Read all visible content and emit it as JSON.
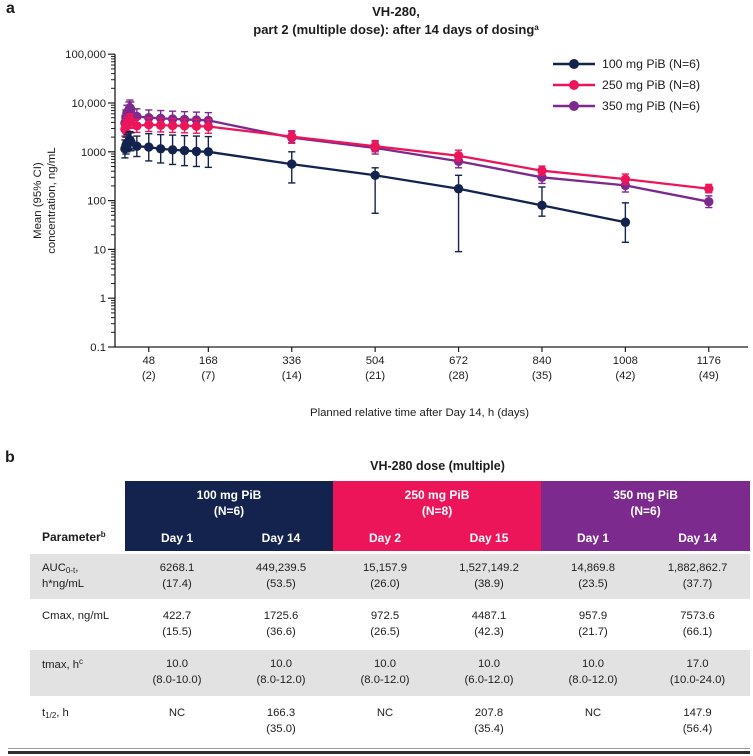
{
  "panel_labels": {
    "a": "a",
    "b": "b"
  },
  "chart_data": [
    {
      "type": "line",
      "panel": "a",
      "title_line1": "VH-280,",
      "title_line2_parts": [
        [
          "t",
          "part 2 (multiple dose): after 14 days of dosing"
        ],
        [
          "sup",
          "a"
        ]
      ],
      "ylabel_line1": "Mean (95% CI)",
      "ylabel_line2": "concentration, ng/mL",
      "xlabel": "Planned relative time after Day 14, h (days)",
      "yscale": "log",
      "ylim": [
        0.1,
        100000
      ],
      "ytick_labels": [
        "100,000",
        "10,000",
        "1000",
        "100",
        "10",
        "1",
        "0.1"
      ],
      "ytick_values": [
        100000,
        10000,
        1000,
        100,
        10,
        1,
        0.1
      ],
      "xlim": [
        -20,
        1255
      ],
      "xticks": [
        {
          "t": 48,
          "h": "48",
          "d": "(2)"
        },
        {
          "t": 168,
          "h": "168",
          "d": "(7)"
        },
        {
          "t": 336,
          "h": "336",
          "d": "(14)"
        },
        {
          "t": 504,
          "h": "504",
          "d": "(21)"
        },
        {
          "t": 672,
          "h": "672",
          "d": "(28)"
        },
        {
          "t": 840,
          "h": "840",
          "d": "(35)"
        },
        {
          "t": 1008,
          "h": "1008",
          "d": "(42)"
        },
        {
          "t": 1176,
          "h": "1176",
          "d": "(49)"
        }
      ],
      "legend_position": "top-right",
      "series": [
        {
          "name": "350 mg PiB (N=6)",
          "color": "#7C2A8D",
          "t": [
            0,
            2,
            4,
            8,
            10,
            12,
            24,
            48,
            72,
            96,
            120,
            144,
            168,
            336,
            504,
            672,
            840,
            1008,
            1176
          ],
          "v": [
            3900,
            5000,
            6200,
            7300,
            8000,
            7300,
            5300,
            5000,
            4850,
            4700,
            4600,
            4500,
            4400,
            1950,
            1200,
            640,
            300,
            205,
            95
          ],
          "lo": [
            2700,
            3500,
            4300,
            5100,
            5600,
            5100,
            3700,
            3450,
            3350,
            3250,
            3200,
            3100,
            3050,
            1500,
            900,
            470,
            225,
            150,
            72
          ],
          "hi": [
            5600,
            7200,
            9000,
            10500,
            11500,
            10500,
            7600,
            7200,
            7000,
            6800,
            6650,
            6500,
            6350,
            2550,
            1600,
            870,
            400,
            280,
            125
          ]
        },
        {
          "name": "250 mg PiB (N=8)",
          "color": "#EC155A",
          "t": [
            0,
            2,
            4,
            8,
            10,
            12,
            24,
            48,
            72,
            96,
            120,
            144,
            168,
            336,
            504,
            672,
            840,
            1008,
            1176
          ],
          "v": [
            2900,
            3300,
            3700,
            4100,
            4400,
            4200,
            3400,
            3600,
            3500,
            3450,
            3400,
            3350,
            3300,
            2050,
            1300,
            830,
            410,
            275,
            175
          ],
          "lo": [
            2100,
            2400,
            2700,
            3000,
            3200,
            3050,
            2500,
            2600,
            2550,
            2500,
            2450,
            2400,
            2400,
            1550,
            1000,
            640,
            330,
            215,
            145
          ],
          "hi": [
            4000,
            4550,
            5100,
            5600,
            6000,
            5800,
            4650,
            5000,
            4850,
            4750,
            4700,
            4650,
            4550,
            2700,
            1700,
            1080,
            510,
            350,
            215
          ]
        },
        {
          "name": "100 mg PiB (N=6)",
          "color": "#14234E",
          "t": [
            0,
            2,
            4,
            8,
            10,
            12,
            24,
            48,
            72,
            96,
            120,
            144,
            168,
            336,
            504,
            672,
            840,
            1008
          ],
          "v": [
            1150,
            1350,
            1500,
            1650,
            1750,
            1600,
            1300,
            1250,
            1150,
            1100,
            1060,
            1020,
            1000,
            560,
            330,
            175,
            80,
            36
          ],
          "lo": [
            750,
            900,
            1000,
            1100,
            1150,
            1050,
            800,
            650,
            590,
            550,
            520,
            500,
            480,
            230,
            55,
            9,
            48,
            14
          ],
          "hi": [
            1750,
            2000,
            2250,
            2450,
            2600,
            2450,
            2100,
            2350,
            2250,
            2200,
            2150,
            2100,
            2050,
            1000,
            470,
            330,
            190,
            90
          ]
        }
      ],
      "legend_order": [
        "100 mg PiB (N=6)",
        "250 mg PiB (N=8)",
        "350 mg PiB (N=6)"
      ],
      "legend_colors": [
        "#14234E",
        "#EC155A",
        "#7C2A8D"
      ]
    },
    {
      "type": "table",
      "panel": "b",
      "title": "VH-280 dose (multiple)",
      "param_header_parts": [
        [
          "t",
          "Parameter"
        ],
        [
          "sup",
          "b"
        ]
      ],
      "groups": [
        {
          "label": "100 mg PiB",
          "n": "(N=6)",
          "color": "#14234E",
          "days": [
            "Day 1",
            "Day 14"
          ]
        },
        {
          "label": "250 mg PiB",
          "n": "(N=8)",
          "color": "#EC155A",
          "days": [
            "Day 2",
            "Day 15"
          ]
        },
        {
          "label": "350 mg PiB",
          "n": "(N=6)",
          "color": "#7C2A8D",
          "days": [
            "Day 1",
            "Day 14"
          ]
        }
      ],
      "rows": [
        {
          "key": "auc",
          "shaded": true,
          "label_parts": [
            [
              "t",
              "AUC"
            ],
            [
              "sub",
              "0-t"
            ],
            [
              "t",
              ","
            ],
            [
              "br",
              ""
            ],
            [
              "t",
              "h*ng/mL"
            ]
          ],
          "cells": [
            [
              "6268.1",
              "(17.4)"
            ],
            [
              "449,239.5",
              "(53.5)"
            ],
            [
              "15,157.9",
              "(26.0)"
            ],
            [
              "1,527,149.2",
              "(38.9)"
            ],
            [
              "14,869.8",
              "(23.5)"
            ],
            [
              "1,882,862.7",
              "(37.7)"
            ]
          ]
        },
        {
          "key": "cmax",
          "shaded": false,
          "label_parts": [
            [
              "t",
              "Cmax, ng/mL"
            ]
          ],
          "cells": [
            [
              "422.7",
              "(15.5)"
            ],
            [
              "1725.6",
              "(36.6)"
            ],
            [
              "972.5",
              "(26.5)"
            ],
            [
              "4487.1",
              "(42.3)"
            ],
            [
              "957.9",
              "(21.7)"
            ],
            [
              "7573.6",
              "(66.1)"
            ]
          ]
        },
        {
          "key": "tmax",
          "shaded": true,
          "label_parts": [
            [
              "t",
              "tmax, h"
            ],
            [
              "sup",
              "c"
            ]
          ],
          "cells": [
            [
              "10.0",
              "(8.0-10.0)"
            ],
            [
              "10.0",
              "(8.0-12.0)"
            ],
            [
              "10.0",
              "(8.0-12.0)"
            ],
            [
              "10.0",
              "(6.0-12.0)"
            ],
            [
              "10.0",
              "(8.0-12.0)"
            ],
            [
              "17.0",
              "(10.0-24.0)"
            ]
          ]
        },
        {
          "key": "thalf",
          "shaded": false,
          "label_parts": [
            [
              "t",
              "t"
            ],
            [
              "sub",
              "1/2"
            ],
            [
              "t",
              ", h"
            ]
          ],
          "cells": [
            [
              "NC"
            ],
            [
              "166.3",
              "(35.0)"
            ],
            [
              "NC"
            ],
            [
              "207.8",
              "(35.4)"
            ],
            [
              "NC"
            ],
            [
              "147.9",
              "(56.4)"
            ]
          ]
        }
      ]
    }
  ]
}
